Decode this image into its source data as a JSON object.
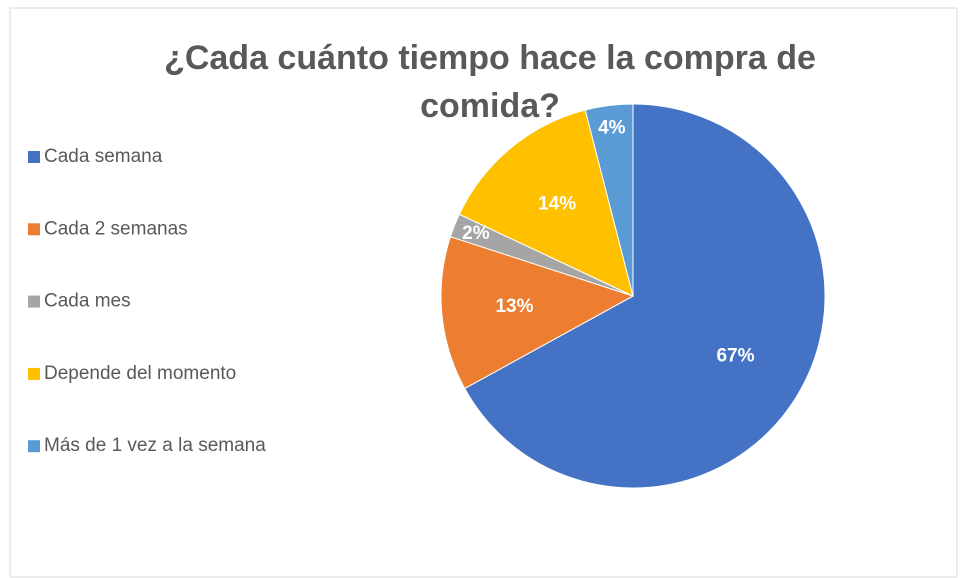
{
  "chart_data": {
    "type": "pie",
    "title": "¿Cada cuánto tiempo hace la compra de comida?",
    "categories": [
      "Cada semana",
      "Cada 2 semanas",
      "Cada mes",
      "Depende del momento",
      "Más de 1 vez a la semana"
    ],
    "values": [
      67,
      13,
      2,
      14,
      4
    ],
    "value_labels": [
      "67%",
      "13%",
      "2%",
      "14%",
      "4%"
    ],
    "colors": [
      "#4472c4",
      "#ed7d31",
      "#a5a5a5",
      "#ffc000",
      "#5b9bd5"
    ],
    "legend": "left"
  }
}
